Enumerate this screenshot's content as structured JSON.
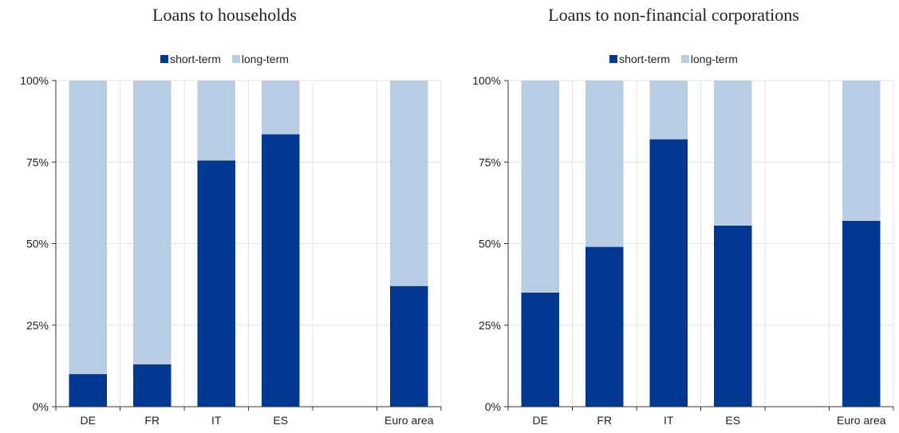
{
  "colors": {
    "short_term": "#003793",
    "long_term": "#b8cce4",
    "grid": "#e3e3e3",
    "axis": "#333333"
  },
  "chart_data": [
    {
      "type": "bar",
      "stacked": true,
      "title": "Loans to households",
      "categories": [
        "DE",
        "FR",
        "IT",
        "ES",
        "",
        "Euro area"
      ],
      "series": [
        {
          "name": "short-term",
          "values": [
            10,
            13,
            75.5,
            83.5,
            null,
            37
          ]
        },
        {
          "name": "long-term",
          "values": [
            90,
            87,
            24.5,
            16.5,
            null,
            63
          ]
        }
      ],
      "ylim": [
        0,
        100
      ],
      "yticks": [
        "0%",
        "25%",
        "50%",
        "75%",
        "100%"
      ],
      "ytick_values": [
        0,
        25,
        50,
        75,
        100
      ],
      "legend": "top-center",
      "grid": true
    },
    {
      "type": "bar",
      "stacked": true,
      "title": "Loans to non-financial corporations",
      "categories": [
        "DE",
        "FR",
        "IT",
        "ES",
        "",
        "Euro area"
      ],
      "series": [
        {
          "name": "short-term",
          "values": [
            35,
            49,
            82,
            55.5,
            null,
            57
          ]
        },
        {
          "name": "long-term",
          "values": [
            65,
            51,
            18,
            44.5,
            null,
            43
          ]
        }
      ],
      "ylim": [
        0,
        100
      ],
      "yticks": [
        "0%",
        "25%",
        "50%",
        "75%",
        "100%"
      ],
      "ytick_values": [
        0,
        25,
        50,
        75,
        100
      ],
      "legend": "top-center",
      "grid": true
    }
  ]
}
